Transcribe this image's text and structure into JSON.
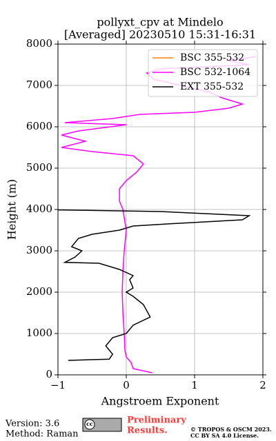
{
  "chart_data": {
    "type": "line",
    "title": [
      "pollyxt_cpv at Mindelo",
      "[Averaged] 20230510 15:31-16:31"
    ],
    "x_label": "Angstroem Exponent",
    "y_label": "Height (m)",
    "xlim": [
      -1,
      2
    ],
    "xticks": [
      {
        "value": -1,
        "label": "−1"
      },
      0,
      1,
      2
    ],
    "ylim": [
      0,
      8000
    ],
    "yticks": [
      0,
      1000,
      2000,
      3000,
      4000,
      5000,
      6000,
      7000,
      8000
    ],
    "grid": true,
    "legend": "upper right",
    "series": [
      {
        "name": "BSC 355-532",
        "color": "#ff7f0e",
        "values": [],
        "heights": []
      },
      {
        "name": "BSC 532-1064",
        "color": "#ff00ff",
        "values": [
          0.38,
          0.1,
          0.07,
          0.0,
          -0.02,
          -0.03,
          -0.05,
          -0.06,
          -0.05,
          -0.03,
          0.0,
          -0.05,
          -0.1,
          -0.1,
          0.0,
          0.15,
          0.25,
          0.1,
          -0.5,
          -0.95,
          -0.6,
          -0.95,
          -0.7,
          0.0,
          -0.9,
          -0.2,
          0.2,
          1.0,
          1.5,
          1.7,
          1.4,
          1.2,
          0.8,
          0.4,
          0.3,
          0.5,
          1.8,
          1.5,
          1.9
        ],
        "heights": [
          50,
          150,
          300,
          430,
          600,
          1000,
          1500,
          2000,
          2500,
          3000,
          3500,
          4000,
          4200,
          4500,
          4700,
          4900,
          5100,
          5300,
          5400,
          5500,
          5650,
          5800,
          5900,
          6050,
          6100,
          6200,
          6300,
          6350,
          6450,
          6550,
          6700,
          6850,
          7000,
          7150,
          7300,
          7400,
          7500,
          7600,
          7700
        ]
      },
      {
        "name": "EXT 355-532",
        "color": "#000000",
        "values": [
          -0.85,
          -0.25,
          -0.2,
          -0.3,
          -0.2,
          0.0,
          0.1,
          0.35,
          0.25,
          0.1,
          0.0,
          0.1,
          0.05,
          0.1,
          -0.1,
          -0.4,
          -0.9,
          -0.75,
          -0.65,
          -0.8,
          -0.7,
          -0.5,
          -0.1,
          0.1,
          0.6,
          1.7,
          1.8,
          0.5,
          -1.0
        ],
        "heights": [
          350,
          380,
          500,
          700,
          900,
          1000,
          1200,
          1400,
          1700,
          1900,
          2000,
          2100,
          2300,
          2400,
          2550,
          2700,
          2720,
          2850,
          3000,
          3100,
          3300,
          3400,
          3500,
          3600,
          3650,
          3750,
          3850,
          3950,
          3990
        ]
      }
    ]
  },
  "footer": {
    "version": "Version: 3.6",
    "method": "Method: Raman",
    "logo": "cc",
    "preliminary": [
      "Preliminary",
      "Results."
    ],
    "copyright": [
      "© TROPOS & OSCM 2023.",
      "CC BY SA 4.0 License."
    ]
  }
}
